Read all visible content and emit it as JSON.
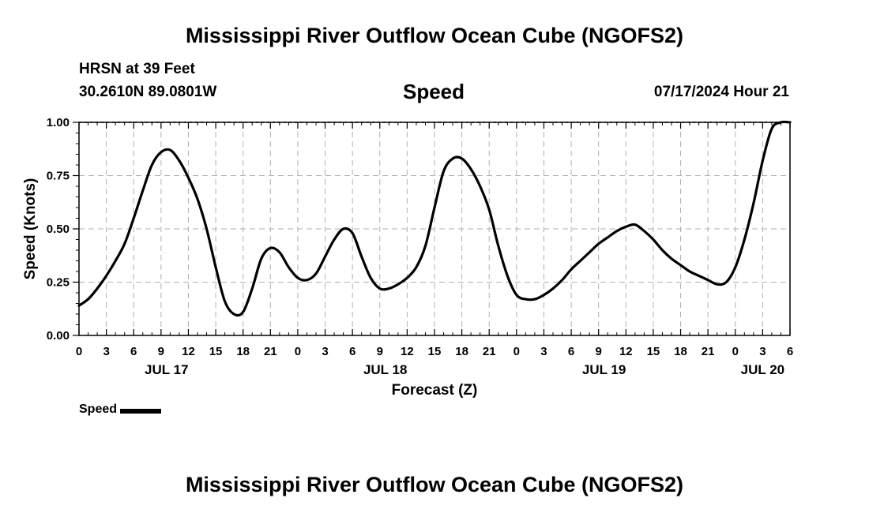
{
  "header": {
    "main_title": "Mississippi River Outflow Ocean Cube (NGOFS2)",
    "station_name": "HRSN at 39 Feet",
    "station_coords": "30.2610N  89.0801W",
    "chart_title": "Speed",
    "run_time": "07/17/2024 Hour 21"
  },
  "footer": {
    "title": "Mississippi River Outflow Ocean Cube (NGOFS2)"
  },
  "legend": {
    "label": "Speed"
  },
  "colors": {
    "line": "#000000",
    "grid": "#b0b0b0",
    "background": "#ffffff"
  },
  "chart_data": {
    "type": "line",
    "title": "Speed",
    "xlabel": "Forecast (Z)",
    "ylabel": "Speed (Knots)",
    "xlim": [
      0,
      78
    ],
    "ylim": [
      0,
      1
    ],
    "x_units": "hours from JUL 17 00Z",
    "ytick_values": [
      0,
      0.25,
      0.5,
      0.75,
      1.0
    ],
    "ytick_labels": [
      "0.00",
      "0.25",
      "0.50",
      "0.75",
      "1.00"
    ],
    "xtick_values": [
      0,
      3,
      6,
      9,
      12,
      15,
      18,
      21,
      24,
      27,
      30,
      33,
      36,
      39,
      42,
      45,
      48,
      51,
      54,
      57,
      60,
      63,
      66,
      69,
      72,
      75,
      78
    ],
    "xtick_labels": [
      "0",
      "3",
      "6",
      "9",
      "12",
      "15",
      "18",
      "21",
      "0",
      "3",
      "6",
      "9",
      "12",
      "15",
      "18",
      "21",
      "0",
      "3",
      "6",
      "9",
      "12",
      "15",
      "18",
      "21",
      "0",
      "3",
      "6"
    ],
    "date_labels": [
      {
        "x": 9.6,
        "label": "JUL 17"
      },
      {
        "x": 33.6,
        "label": "JUL 18"
      },
      {
        "x": 57.6,
        "label": "JUL 19"
      },
      {
        "x": 75.0,
        "label": "JUL 20"
      }
    ],
    "grid": true,
    "series": [
      {
        "name": "Speed",
        "x": [
          0,
          1,
          2,
          3,
          4,
          5,
          6,
          7,
          8,
          9,
          10,
          11,
          12,
          13,
          14,
          15,
          16,
          17,
          18,
          19,
          20,
          21,
          22,
          23,
          24,
          25,
          26,
          27,
          28,
          29,
          30,
          31,
          32,
          33,
          34,
          35,
          36,
          37,
          38,
          39,
          40,
          41,
          42,
          43,
          44,
          45,
          46,
          47,
          48,
          49,
          50,
          51,
          52,
          53,
          54,
          55,
          56,
          57,
          58,
          59,
          60,
          61,
          62,
          63,
          64,
          65,
          66,
          67,
          68,
          69,
          70,
          71,
          72,
          73,
          74,
          75,
          76,
          77,
          78
        ],
        "values": [
          0.14,
          0.17,
          0.22,
          0.28,
          0.35,
          0.43,
          0.55,
          0.68,
          0.8,
          0.86,
          0.87,
          0.82,
          0.74,
          0.64,
          0.5,
          0.32,
          0.16,
          0.1,
          0.11,
          0.22,
          0.36,
          0.41,
          0.39,
          0.32,
          0.27,
          0.26,
          0.29,
          0.37,
          0.45,
          0.5,
          0.48,
          0.37,
          0.27,
          0.22,
          0.22,
          0.24,
          0.27,
          0.32,
          0.42,
          0.6,
          0.77,
          0.83,
          0.83,
          0.78,
          0.7,
          0.59,
          0.42,
          0.28,
          0.19,
          0.17,
          0.17,
          0.19,
          0.22,
          0.26,
          0.31,
          0.35,
          0.39,
          0.43,
          0.46,
          0.49,
          0.51,
          0.52,
          0.49,
          0.45,
          0.4,
          0.36,
          0.33,
          0.3,
          0.28,
          0.26,
          0.24,
          0.25,
          0.32,
          0.45,
          0.62,
          0.82,
          0.97,
          1.0,
          1.0
        ]
      }
    ]
  }
}
